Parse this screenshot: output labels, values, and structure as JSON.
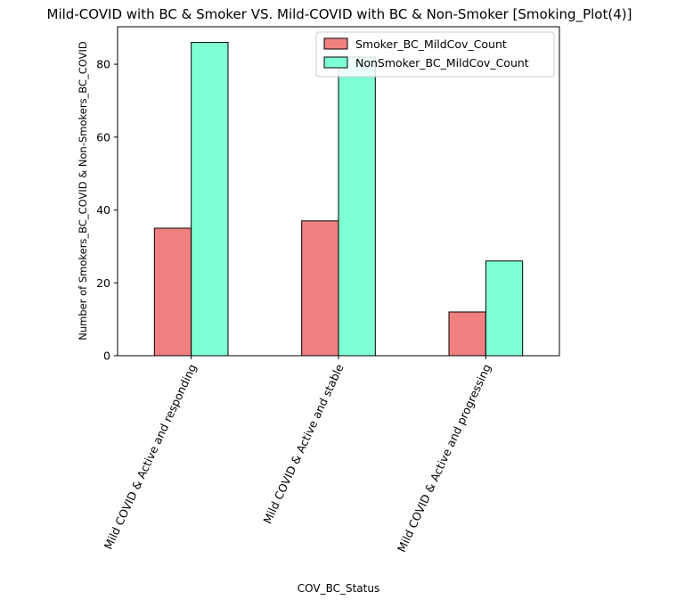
{
  "chart_data": {
    "type": "bar",
    "title": "Mild-COVID with BC & Smoker VS. Mild-COVID with BC & Non-Smoker   [Smoking_Plot(4)]",
    "xlabel": "COV_BC_Status",
    "ylabel": "Number of Smokers_BC_COVID & Non-Smokers_BC_COVID",
    "categories": [
      "Mild COVID & Active and responding",
      "Mild COVID &  Active and stable",
      "Mild COVID & Active and progressing"
    ],
    "series": [
      {
        "name": "Smoker_BC_MildCov_Count",
        "values": [
          35,
          37,
          12
        ],
        "color": "#f08080"
      },
      {
        "name": "NonSmoker_BC_MildCov_Count",
        "values": [
          86,
          82,
          26
        ],
        "color": "#7fffd4"
      }
    ],
    "ylim": [
      0,
      90.3
    ],
    "yticks": [
      0,
      20,
      40,
      60,
      80
    ],
    "legend_position": "top-right",
    "grid": false
  }
}
